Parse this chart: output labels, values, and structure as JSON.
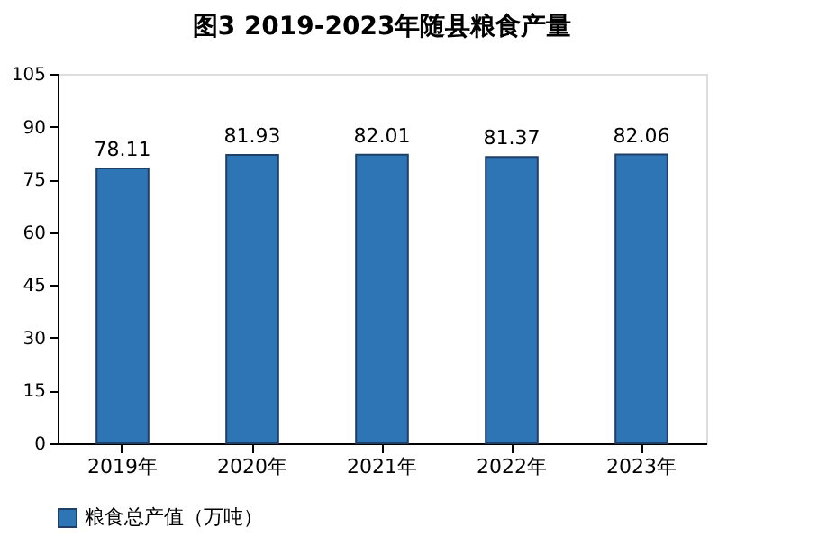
{
  "chart_data": {
    "type": "bar",
    "title": "图3   2019-2023年随县粮食产量",
    "categories": [
      "2019年",
      "2020年",
      "2021年",
      "2022年",
      "2023年"
    ],
    "series": [
      {
        "name": "粮食总产值（万吨）",
        "color": "#2e75b6",
        "values": [
          78.11,
          81.93,
          82.01,
          81.37,
          82.06
        ]
      }
    ],
    "ylim": [
      0,
      105
    ],
    "yticks": [
      0,
      15,
      30,
      45,
      60,
      75,
      90,
      105
    ],
    "grid": false,
    "legend": "bottom",
    "data_labels": true
  }
}
